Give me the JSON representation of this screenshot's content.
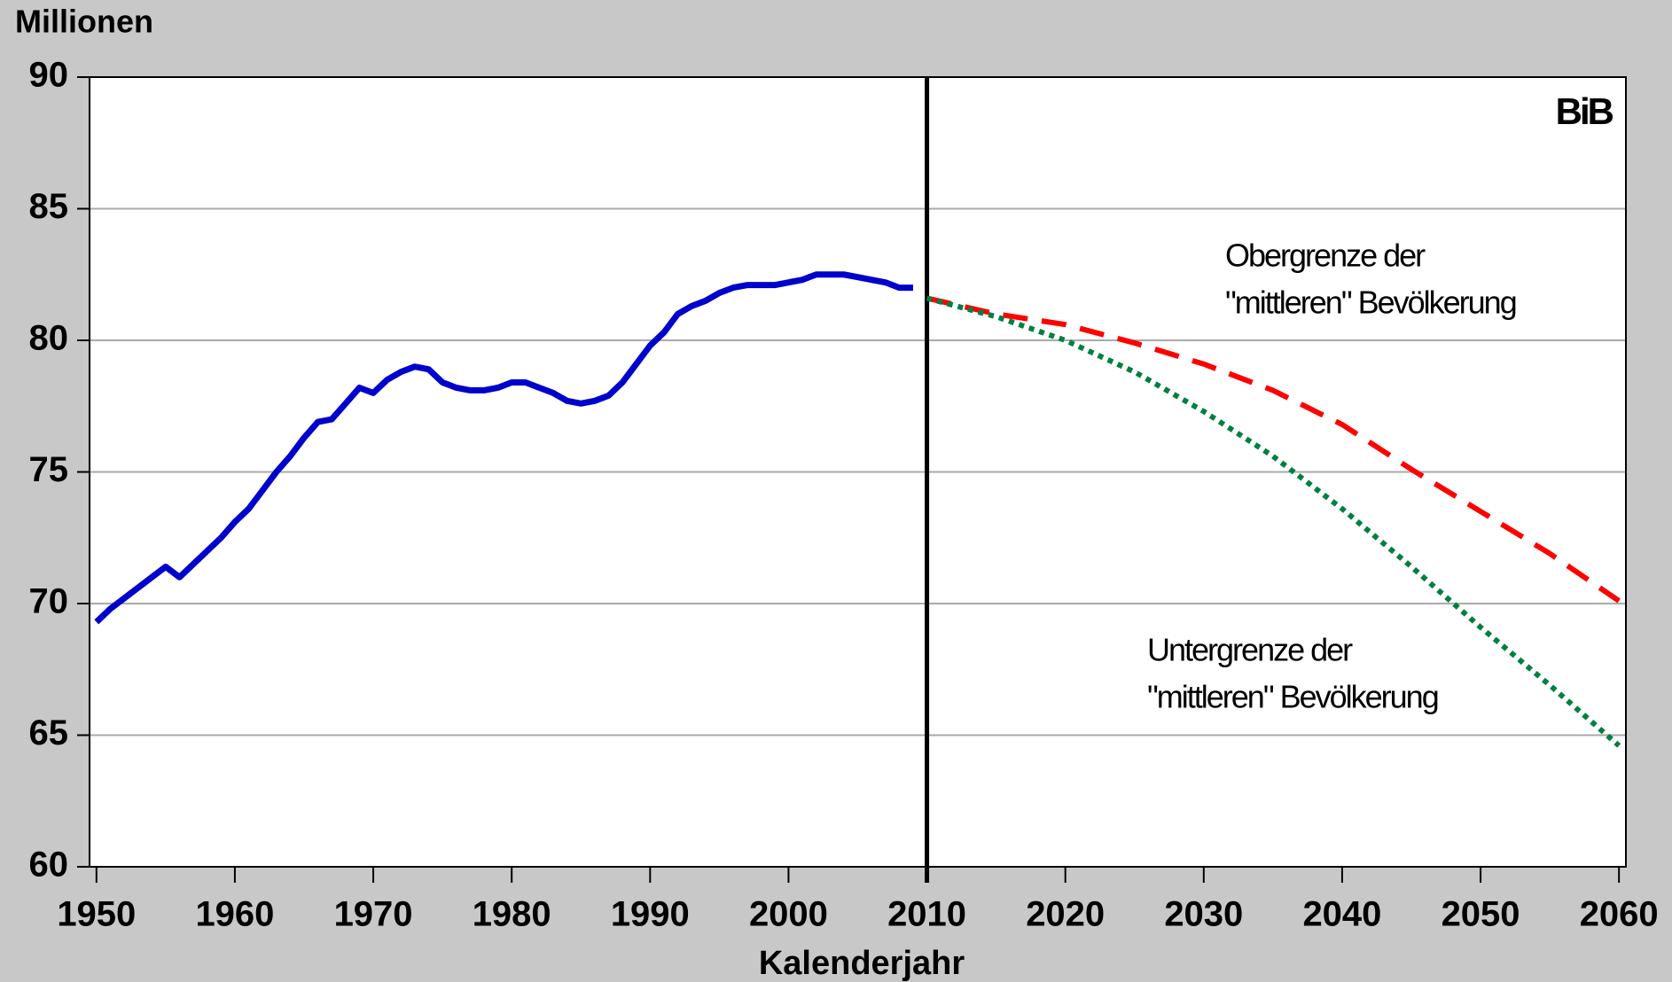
{
  "chart_data": {
    "type": "line",
    "y_label": "Millionen",
    "x_label": "Kalenderjahr",
    "watermark": "BiB",
    "annotations": [
      [
        "Obergrenze der",
        "\"mittleren\" Bevölkerung"
      ],
      [
        "Untergrenze der",
        "\"mittleren\" Bevölkerung"
      ]
    ],
    "vline": 2010,
    "x": [
      1950,
      1951,
      1952,
      1953,
      1954,
      1955,
      1956,
      1957,
      1958,
      1959,
      1960,
      1961,
      1962,
      1963,
      1964,
      1965,
      1966,
      1967,
      1968,
      1969,
      1970,
      1971,
      1972,
      1973,
      1974,
      1975,
      1976,
      1977,
      1978,
      1979,
      1980,
      1981,
      1982,
      1983,
      1984,
      1985,
      1986,
      1987,
      1988,
      1989,
      1990,
      1991,
      1992,
      1993,
      1994,
      1995,
      1996,
      1997,
      1998,
      1999,
      2000,
      2001,
      2002,
      2003,
      2004,
      2005,
      2006,
      2007,
      2008,
      2009,
      2010,
      2015,
      2020,
      2025,
      2030,
      2035,
      2040,
      2045,
      2050,
      2055,
      2060
    ],
    "series": [
      {
        "color": "#0000cc",
        "style": "solid",
        "values": [
          69.3,
          69.8,
          70.2,
          70.6,
          71.0,
          71.4,
          71.0,
          71.5,
          72.0,
          72.5,
          73.1,
          73.6,
          74.3,
          75.0,
          75.6,
          76.3,
          76.9,
          77.0,
          77.6,
          78.2,
          78.0,
          78.5,
          78.8,
          79.0,
          78.9,
          78.4,
          78.2,
          78.1,
          78.1,
          78.2,
          78.4,
          78.4,
          78.2,
          78.0,
          77.7,
          77.6,
          77.7,
          77.9,
          78.4,
          79.1,
          79.8,
          80.3,
          81.0,
          81.3,
          81.5,
          81.8,
          82.0,
          82.1,
          82.1,
          82.1,
          82.2,
          82.3,
          82.5,
          82.5,
          82.5,
          82.4,
          82.3,
          82.2,
          82.0,
          82.0,
          null,
          null,
          null,
          null,
          null,
          null,
          null,
          null,
          null,
          null,
          null
        ]
      },
      {
        "color": "#ff0000",
        "style": "dashed",
        "values": [
          null,
          null,
          null,
          null,
          null,
          null,
          null,
          null,
          null,
          null,
          null,
          null,
          null,
          null,
          null,
          null,
          null,
          null,
          null,
          null,
          null,
          null,
          null,
          null,
          null,
          null,
          null,
          null,
          null,
          null,
          null,
          null,
          null,
          null,
          null,
          null,
          null,
          null,
          null,
          null,
          null,
          null,
          null,
          null,
          null,
          null,
          null,
          null,
          null,
          null,
          null,
          null,
          null,
          null,
          null,
          null,
          null,
          null,
          null,
          null,
          81.6,
          81.0,
          80.6,
          79.9,
          79.1,
          78.1,
          76.8,
          75.1,
          73.5,
          71.9,
          70.1
        ]
      },
      {
        "color": "#008040",
        "style": "dotted",
        "values": [
          null,
          null,
          null,
          null,
          null,
          null,
          null,
          null,
          null,
          null,
          null,
          null,
          null,
          null,
          null,
          null,
          null,
          null,
          null,
          null,
          null,
          null,
          null,
          null,
          null,
          null,
          null,
          null,
          null,
          null,
          null,
          null,
          null,
          null,
          null,
          null,
          null,
          null,
          null,
          null,
          null,
          null,
          null,
          null,
          null,
          null,
          null,
          null,
          null,
          null,
          null,
          null,
          null,
          null,
          null,
          null,
          null,
          null,
          null,
          null,
          81.6,
          80.9,
          80.0,
          78.8,
          77.3,
          75.6,
          73.6,
          71.4,
          69.1,
          66.9,
          64.6
        ]
      }
    ],
    "xlim": [
      1949.5,
      2060.5
    ],
    "ylim": [
      60,
      90
    ],
    "xticks": [
      1950,
      1960,
      1970,
      1980,
      1990,
      2000,
      2010,
      2020,
      2030,
      2040,
      2050,
      2060
    ],
    "yticks": [
      60,
      65,
      70,
      75,
      80,
      85,
      90
    ],
    "grid": true
  }
}
